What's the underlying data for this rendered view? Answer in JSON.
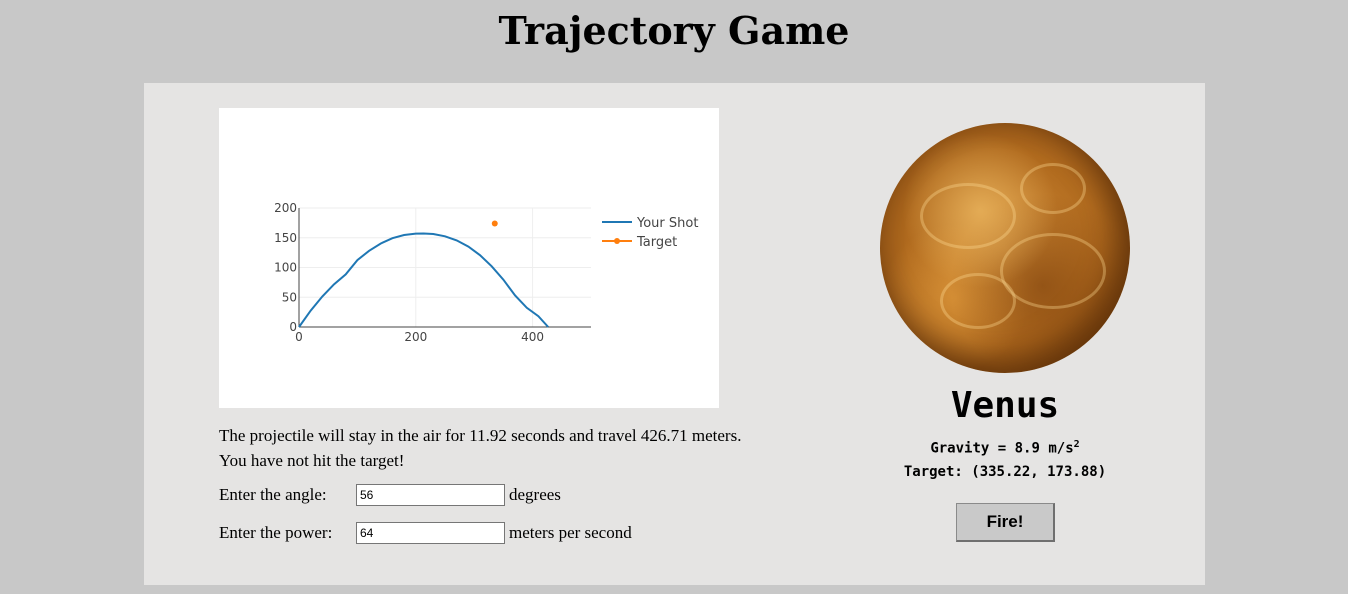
{
  "page": {
    "title": "Trajectory Game"
  },
  "chart_data": {
    "type": "line",
    "series": [
      {
        "name": "Your Shot",
        "color": "#1f77b4",
        "x": [
          0,
          20,
          40,
          60,
          80,
          100,
          120,
          140,
          160,
          180,
          200,
          213.35,
          230,
          250,
          270,
          290,
          310,
          330,
          350,
          370,
          390,
          410,
          426.71
        ],
        "y": [
          0,
          27.6,
          51.5,
          71.7,
          88.4,
          112.5,
          128.1,
          140.3,
          149.2,
          154.7,
          156.9,
          157.2,
          156.3,
          152.5,
          145.5,
          135.2,
          120.7,
          102.1,
          79.5,
          52.9,
          32.3,
          18.1,
          0
        ]
      },
      {
        "name": "Target",
        "color": "#ff7f0e",
        "marker": "dot",
        "x": [
          335.22
        ],
        "y": [
          173.88
        ]
      }
    ],
    "xlim": [
      0,
      500
    ],
    "ylim": [
      0,
      200
    ],
    "xticks": [
      0,
      200,
      400
    ],
    "yticks": [
      0,
      50,
      100,
      150,
      200
    ],
    "grid": true,
    "legend": "right"
  },
  "result": {
    "line1": "The projectile will stay in the air for 11.92 seconds and travel 426.71 meters.",
    "line2": "You have not hit the target!"
  },
  "controls": {
    "angle_label": "Enter the angle:",
    "angle_value": "56",
    "angle_unit": "degrees",
    "power_label": "Enter the power:",
    "power_value": "64",
    "power_unit": "meters per second"
  },
  "planet": {
    "name": "Venus",
    "gravity_text": "Gravity = 8.9 m/s",
    "gravity_exp": "2",
    "target_text": "Target: (335.22, 173.88)",
    "image_icon": "venus-planet-image"
  },
  "fire_label": "Fire!"
}
